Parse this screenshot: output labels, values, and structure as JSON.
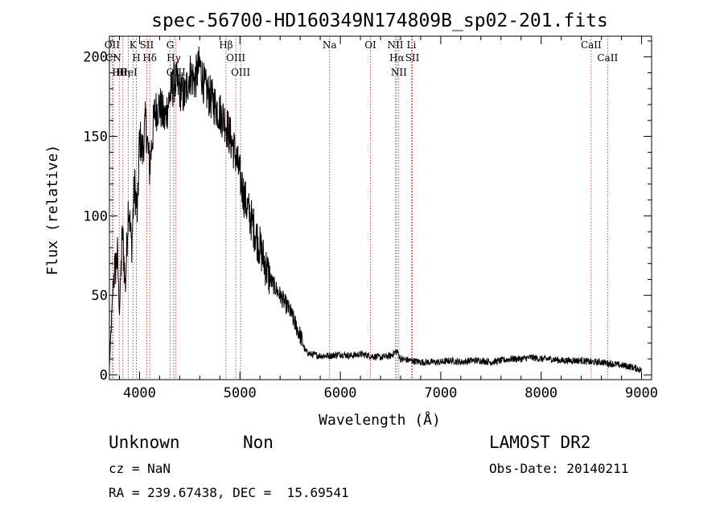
{
  "chart_data": {
    "type": "line",
    "title": "spec-56700-HD160349N174809B_sp02-201.fits",
    "xlabel": "Wavelength (Å)",
    "ylabel": "Flux (relative)",
    "xlim": [
      3700,
      9100
    ],
    "ylim": [
      -3,
      213
    ],
    "xticks": [
      4000,
      5000,
      6000,
      7000,
      8000,
      9000
    ],
    "yticks": [
      0,
      50,
      100,
      150,
      200
    ],
    "grid": false,
    "series": [
      {
        "x": [
          3700,
          3740,
          3780,
          3800,
          3830,
          3860,
          3890,
          3920,
          3950,
          3980,
          4000,
          4030,
          4060,
          4100,
          4150,
          4200,
          4250,
          4300,
          4350,
          4400,
          4450,
          4500,
          4550,
          4600,
          4650,
          4700,
          4750,
          4800,
          4850,
          4900,
          4950,
          5000,
          5050,
          5100,
          5150,
          5200,
          5250,
          5300,
          5350,
          5400,
          5450,
          5500,
          5550,
          5600,
          5650,
          5700,
          5800,
          5900,
          6000,
          6100,
          6200,
          6300,
          6400,
          6500,
          6563,
          6600,
          6700,
          6800,
          6900,
          7000,
          7100,
          7200,
          7300,
          7400,
          7500,
          7600,
          7700,
          7800,
          7900,
          8000,
          8100,
          8200,
          8300,
          8400,
          8500,
          8600,
          8700,
          8800,
          8900,
          9000
        ],
        "y": [
          5,
          60,
          75,
          40,
          90,
          55,
          110,
          80,
          120,
          100,
          150,
          140,
          160,
          130,
          165,
          170,
          160,
          175,
          185,
          180,
          175,
          190,
          185,
          195,
          180,
          175,
          170,
          165,
          160,
          150,
          140,
          125,
          110,
          100,
          90,
          80,
          70,
          60,
          55,
          50,
          45,
          40,
          32,
          25,
          15,
          13,
          12,
          12,
          13,
          12,
          13,
          12,
          11,
          12,
          15,
          10,
          9,
          8,
          8,
          8,
          9,
          8,
          9,
          9,
          8,
          9,
          10,
          10,
          11,
          10,
          10,
          9,
          9,
          9,
          8,
          8,
          7,
          6,
          5,
          3
        ]
      }
    ],
    "line_marks": [
      {
        "label": "Hθ",
        "x": 3798
      },
      {
        "label": "OII",
        "x": 3727
      },
      {
        "label": "CN",
        "x": 3740
      },
      {
        "label": "HeI",
        "x": 3889
      },
      {
        "label": "Hη",
        "x": 3835
      },
      {
        "label": "K",
        "x": 3934
      },
      {
        "label": "H",
        "x": 3969
      },
      {
        "label": "SII",
        "x": 4072
      },
      {
        "label": "Hδ",
        "x": 4102
      },
      {
        "label": "OIII",
        "x": 4363
      },
      {
        "label": "Hγ",
        "x": 4341
      },
      {
        "label": "G",
        "x": 4305
      },
      {
        "label": "Hβ",
        "x": 4861
      },
      {
        "label": "OIII",
        "x": 4959
      },
      {
        "label": "OIII",
        "x": 5007
      },
      {
        "label": "Na",
        "x": 5893
      },
      {
        "label": "OI",
        "x": 6300
      },
      {
        "label": "NII",
        "x": 6548
      },
      {
        "label": "NII",
        "x": 6583
      },
      {
        "label": "Hα",
        "x": 6563
      },
      {
        "label": "Li",
        "x": 6708
      },
      {
        "label": "SII",
        "x": 6717
      },
      {
        "label": "CaII",
        "x": 8498
      },
      {
        "label": "CaII",
        "x": 8662
      }
    ]
  },
  "footer": {
    "class_label": "Unknown",
    "subclass_label": "Non",
    "survey": "LAMOST DR2",
    "cz": "cz = NaN",
    "obs_date": "Obs-Date: 20140211",
    "coords": "RA = 239.67438, DEC =  15.69541"
  },
  "colors": {
    "line_marks": "#b22222",
    "spectrum": "#000000",
    "axes": "#000000"
  }
}
